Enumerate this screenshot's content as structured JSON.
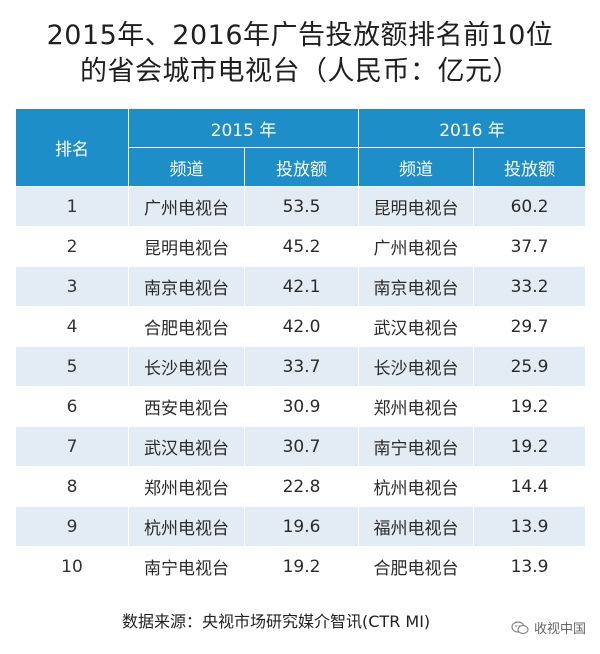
{
  "title": {
    "line1": "2015年、2016年广告投放额排名前10位",
    "line2": "的省会城市电视台（人民币：亿元）"
  },
  "table": {
    "rank_header": "排名",
    "year_headers": [
      "2015 年",
      "2016 年"
    ],
    "sub_headers": [
      "频道",
      "投放额",
      "频道",
      "投放额"
    ],
    "rows": [
      {
        "rank": "1",
        "ch2015": "广州电视台",
        "amt2015": "53.5",
        "ch2016": "昆明电视台",
        "amt2016": "60.2"
      },
      {
        "rank": "2",
        "ch2015": "昆明电视台",
        "amt2015": "45.2",
        "ch2016": "广州电视台",
        "amt2016": "37.7"
      },
      {
        "rank": "3",
        "ch2015": "南京电视台",
        "amt2015": "42.1",
        "ch2016": "南京电视台",
        "amt2016": "33.2"
      },
      {
        "rank": "4",
        "ch2015": "合肥电视台",
        "amt2015": "42.0",
        "ch2016": "武汉电视台",
        "amt2016": "29.7"
      },
      {
        "rank": "5",
        "ch2015": "长沙电视台",
        "amt2015": "33.7",
        "ch2016": "长沙电视台",
        "amt2016": "25.9"
      },
      {
        "rank": "6",
        "ch2015": "西安电视台",
        "amt2015": "30.9",
        "ch2016": "郑州电视台",
        "amt2016": "19.2"
      },
      {
        "rank": "7",
        "ch2015": "武汉电视台",
        "amt2015": "30.7",
        "ch2016": "南宁电视台",
        "amt2016": "19.2"
      },
      {
        "rank": "8",
        "ch2015": "郑州电视台",
        "amt2015": "22.8",
        "ch2016": "杭州电视台",
        "amt2016": "14.4"
      },
      {
        "rank": "9",
        "ch2015": "杭州电视台",
        "amt2015": "19.6",
        "ch2016": "福州电视台",
        "amt2016": "13.9"
      },
      {
        "rank": "10",
        "ch2015": "南宁电视台",
        "amt2015": "19.2",
        "ch2016": "合肥电视台",
        "amt2016": "13.9"
      }
    ]
  },
  "source": "数据来源：央视市场研究媒介智讯(CTR MI)",
  "watermark": {
    "text": "收视中国",
    "icon": "wechat-logo-icon"
  },
  "colors": {
    "header_blue": "#1d8ec8",
    "row_stripe": "#e3ebf5"
  }
}
